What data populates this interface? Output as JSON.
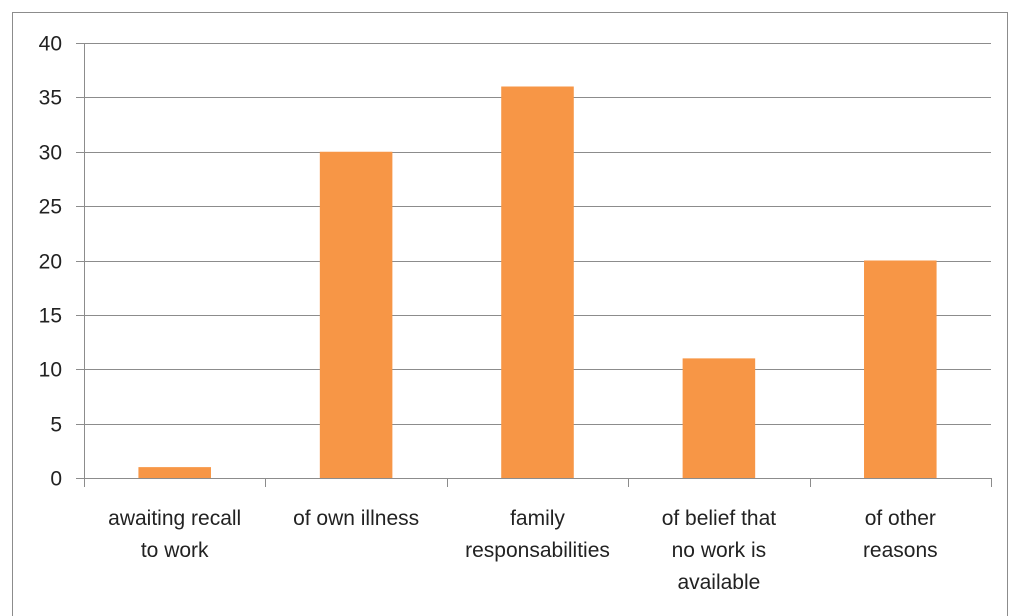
{
  "chart_data": {
    "type": "bar",
    "categories": [
      [
        "awaiting recall",
        "to work"
      ],
      [
        "of own illness"
      ],
      [
        "family",
        "responsabilities"
      ],
      [
        "of belief that",
        "no work is",
        "available"
      ],
      [
        "of other",
        "reasons"
      ]
    ],
    "values": [
      1,
      30,
      36,
      11,
      20
    ],
    "ylim": [
      0,
      40
    ],
    "yticks": [
      0,
      5,
      10,
      15,
      20,
      25,
      30,
      35,
      40
    ],
    "grid": true,
    "bar_color": "#f79646",
    "grid_color": "#8c8c8c",
    "title": "",
    "xlabel": "",
    "ylabel": ""
  }
}
